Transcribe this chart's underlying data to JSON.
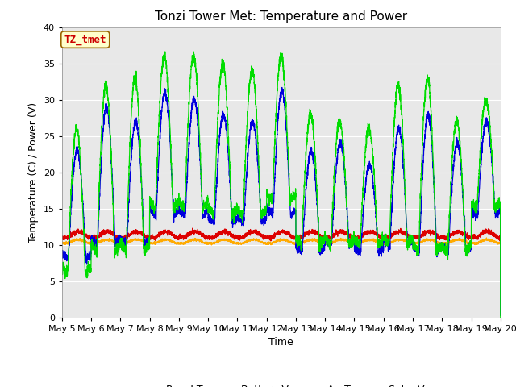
{
  "title": "Tonzi Tower Met: Temperature and Power",
  "xlabel": "Time",
  "ylabel": "Temperature (C) / Power (V)",
  "ylim": [
    0,
    40
  ],
  "n_days": 15,
  "xtick_labels": [
    "May 5",
    "May 6",
    "May 7",
    "May 8",
    "May 9",
    "May 10",
    "May 11",
    "May 12",
    "May 13",
    "May 14",
    "May 15",
    "May 16",
    "May 17",
    "May 18",
    "May 19",
    "May 20"
  ],
  "annotation_text": "TZ_tmet",
  "annotation_bg": "#ffffcc",
  "annotation_border": "#996600",
  "annotation_text_color": "#cc0000",
  "colors": {
    "Panel T": "#00dd00",
    "Battery V": "#dd0000",
    "Air T": "#0000dd",
    "Solar V": "#ffaa00"
  },
  "bg_color": "#e8e8e8",
  "title_fontsize": 11,
  "axis_fontsize": 9,
  "tick_fontsize": 8,
  "legend_fontsize": 9
}
